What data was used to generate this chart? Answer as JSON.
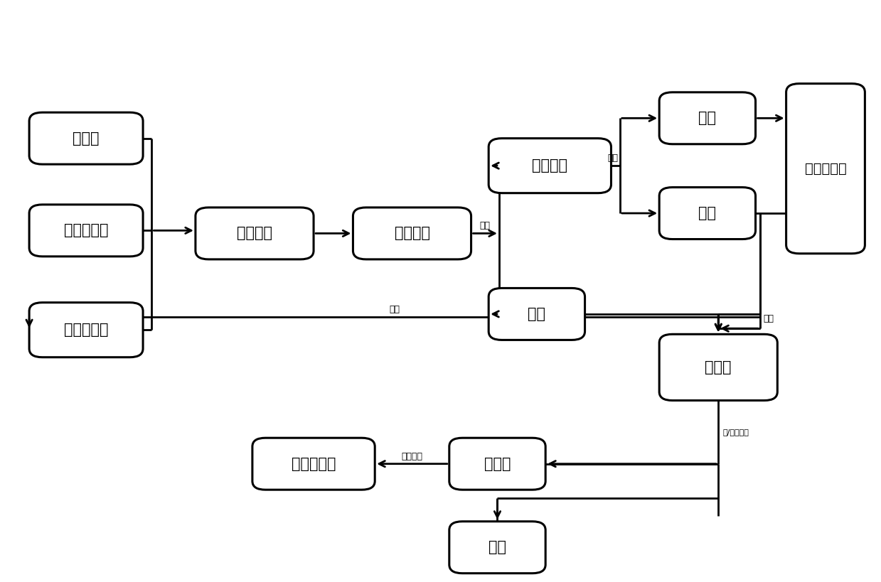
{
  "bg_color": "#ffffff",
  "box_ec": "#000000",
  "box_fc": "#ffffff",
  "lw": 2.2,
  "alw": 2.0,
  "fs": 15,
  "sfs": 9,
  "boxes": {
    "biomass": [
      0.03,
      0.72,
      0.13,
      0.09,
      "生物质"
    ],
    "red_mud": [
      0.03,
      0.56,
      0.13,
      0.09,
      "赤泥催化剂"
    ],
    "alcohol": [
      0.03,
      0.385,
      0.13,
      0.095,
      "无水一元醇"
    ],
    "high_temp": [
      0.22,
      0.555,
      0.135,
      0.09,
      "高温液化"
    ],
    "liq_prod": [
      0.4,
      0.555,
      0.135,
      0.09,
      "液化产物"
    ],
    "liq_res": [
      0.555,
      0.67,
      0.14,
      0.095,
      "液化残渣"
    ],
    "filtrate": [
      0.555,
      0.415,
      0.11,
      0.09,
      "滤液"
    ],
    "residue": [
      0.75,
      0.755,
      0.11,
      0.09,
      "残渣"
    ],
    "wash": [
      0.75,
      0.59,
      0.11,
      0.09,
      "洗液"
    ],
    "cat_rec": [
      0.895,
      0.565,
      0.09,
      0.295,
      "催化剂回收"
    ],
    "rot_evap": [
      0.75,
      0.31,
      0.135,
      0.115,
      "旋蕲液"
    ],
    "organic": [
      0.51,
      0.155,
      0.11,
      0.09,
      "有机相"
    ],
    "water_ph": [
      0.51,
      0.01,
      0.11,
      0.09,
      "水相"
    ],
    "levulinate": [
      0.285,
      0.155,
      0.14,
      0.09,
      "乙酰丙酸酯"
    ]
  }
}
